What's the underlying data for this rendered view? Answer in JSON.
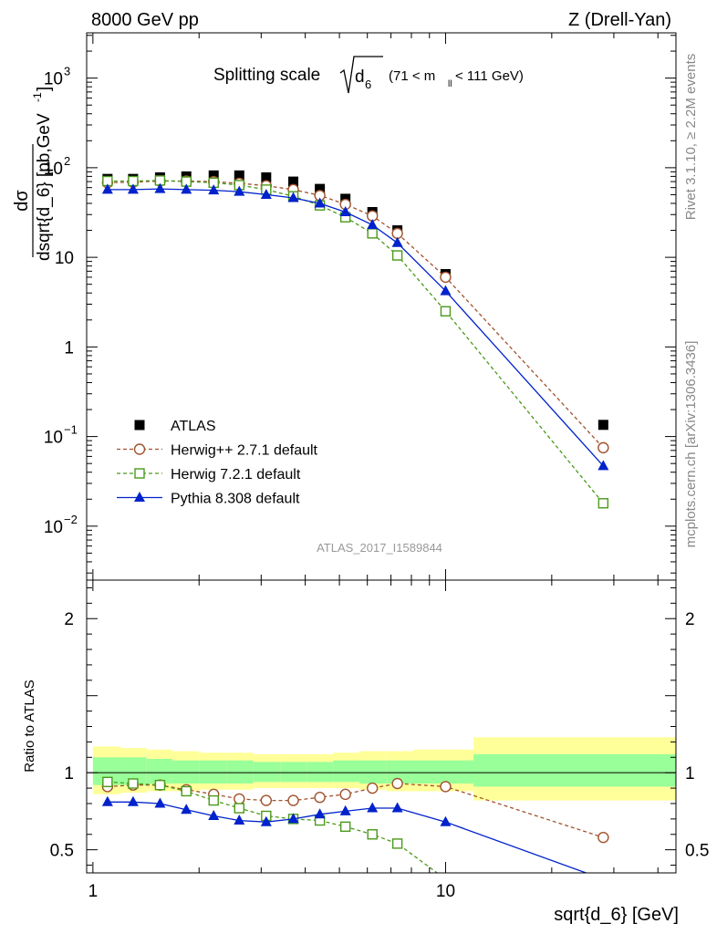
{
  "header": {
    "left": "8000 GeV pp",
    "right": "Z (Drell-Yan)"
  },
  "side_labels": {
    "rivet": "Rivet 3.1.10, ≥ 2.2M events",
    "mcplots": "mcplots.cern.ch [arXiv:1306.3436]"
  },
  "chart_data": [
    {
      "type": "scatter",
      "panel": "main",
      "title": "Splitting scale √d6 (71 < m_ll < 111 GeV)",
      "title_parts": {
        "main": "Splitting scale",
        "var": "d",
        "var_sub": "6",
        "cut_pre": "(71 < m",
        "cut_sub": "ll",
        "cut_post": " < 111 GeV)"
      },
      "ylabel": "dσ/dsqrt{d_6} [pb,GeV⁻¹]",
      "ylabel_parts": {
        "num": "dσ",
        "den": "dsqrt{d_6} [pb,GeV",
        "sup": "-1",
        "close": "]"
      },
      "xscale": "log",
      "yscale": "log",
      "xlim": [
        0.96,
        45
      ],
      "ylim": [
        0.0025,
        3200
      ],
      "yticks": [
        {
          "v": 0.01,
          "label": "10",
          "sup": "−2"
        },
        {
          "v": 0.1,
          "label": "10",
          "sup": "−1"
        },
        {
          "v": 1,
          "label": "1",
          "sup": ""
        },
        {
          "v": 10,
          "label": "10",
          "sup": ""
        },
        {
          "v": 100,
          "label": "10",
          "sup": "2"
        },
        {
          "v": 1000,
          "label": "10",
          "sup": "3"
        }
      ],
      "legend_position": "lower-left",
      "watermark": "ATLAS_2017_I1589844",
      "series": [
        {
          "name": "ATLAS",
          "style": "square",
          "color": "#000000",
          "x": [
            1.1,
            1.3,
            1.55,
            1.84,
            2.2,
            2.6,
            3.1,
            3.7,
            4.4,
            5.2,
            6.2,
            7.3,
            10.0,
            28.0
          ],
          "y": [
            75,
            75,
            78,
            80,
            82,
            82,
            78,
            70,
            58,
            45,
            32,
            20,
            6.5,
            0.135
          ]
        },
        {
          "name": "Herwig++ 2.7.1 default",
          "style": "circle",
          "color": "#a0522d",
          "dashed": true,
          "x": [
            1.1,
            1.3,
            1.55,
            1.84,
            2.2,
            2.6,
            3.1,
            3.7,
            4.4,
            5.2,
            6.2,
            7.3,
            10.0,
            28.0
          ],
          "y": [
            68,
            69,
            71,
            71,
            70,
            67,
            63,
            57,
            49,
            39,
            29,
            18.5,
            6.0,
            0.075
          ]
        },
        {
          "name": "Herwig 7.2.1 default",
          "style": "opensquare",
          "color": "#4a9a1a",
          "dashed": true,
          "x": [
            1.1,
            1.3,
            1.55,
            1.84,
            2.2,
            2.6,
            3.1,
            3.7,
            4.4,
            5.2,
            6.2,
            7.3,
            10.0,
            28.0
          ],
          "y": [
            71,
            71,
            72,
            70,
            68,
            64,
            57,
            48,
            38,
            28,
            18.5,
            10.5,
            2.5,
            0.018
          ]
        },
        {
          "name": "Pythia 8.308 default",
          "style": "triangle",
          "color": "#0022cc",
          "dashed": false,
          "x": [
            1.1,
            1.3,
            1.55,
            1.84,
            2.2,
            2.6,
            3.1,
            3.7,
            4.4,
            5.2,
            6.2,
            7.3,
            10.0,
            28.0
          ],
          "y": [
            57,
            57,
            58,
            57,
            56,
            54,
            50,
            46,
            40,
            32,
            23,
            14.5,
            4.2,
            0.047
          ]
        }
      ]
    },
    {
      "type": "line",
      "panel": "ratio",
      "ylabel": "Ratio to ATLAS",
      "xlabel": "sqrt{d_6} [GeV]",
      "xscale": "log",
      "xlim": [
        0.96,
        45
      ],
      "ylim": [
        0.35,
        2.25
      ],
      "xticks": [
        {
          "v": 1,
          "label": "1"
        },
        {
          "v": 10,
          "label": "10"
        }
      ],
      "yticks": [
        {
          "v": 0.5,
          "label": "0.5"
        },
        {
          "v": 1,
          "label": "1"
        },
        {
          "v": 2,
          "label": "2"
        }
      ],
      "uncertainty_bands": {
        "colors": {
          "outer": "#ffff99",
          "inner": "#99ff99"
        },
        "bins": [
          1.0,
          1.2,
          1.42,
          1.68,
          2.0,
          2.4,
          2.85,
          3.4,
          4.05,
          4.8,
          5.7,
          6.8,
          8.1,
          12.0,
          45.0
        ],
        "outer": [
          [
            0.86,
            1.17
          ],
          [
            0.87,
            1.16
          ],
          [
            0.88,
            1.15
          ],
          [
            0.88,
            1.14
          ],
          [
            0.89,
            1.13
          ],
          [
            0.89,
            1.13
          ],
          [
            0.9,
            1.12
          ],
          [
            0.9,
            1.12
          ],
          [
            0.9,
            1.12
          ],
          [
            0.9,
            1.13
          ],
          [
            0.89,
            1.14
          ],
          [
            0.88,
            1.14
          ],
          [
            0.88,
            1.15
          ],
          [
            0.82,
            1.23
          ]
        ],
        "inner": [
          [
            0.92,
            1.1
          ],
          [
            0.92,
            1.1
          ],
          [
            0.93,
            1.09
          ],
          [
            0.93,
            1.08
          ],
          [
            0.93,
            1.08
          ],
          [
            0.93,
            1.08
          ],
          [
            0.94,
            1.07
          ],
          [
            0.94,
            1.07
          ],
          [
            0.94,
            1.07
          ],
          [
            0.94,
            1.08
          ],
          [
            0.93,
            1.08
          ],
          [
            0.93,
            1.08
          ],
          [
            0.93,
            1.08
          ],
          [
            0.91,
            1.12
          ]
        ]
      },
      "series": [
        {
          "name": "Herwig++ 2.7.1 default",
          "style": "circle",
          "color": "#a0522d",
          "dashed": true,
          "x": [
            1.1,
            1.3,
            1.55,
            1.84,
            2.2,
            2.6,
            3.1,
            3.7,
            4.4,
            5.2,
            6.2,
            7.3,
            10.0,
            28.0
          ],
          "y": [
            0.91,
            0.92,
            0.92,
            0.89,
            0.86,
            0.83,
            0.82,
            0.82,
            0.84,
            0.86,
            0.9,
            0.93,
            0.91,
            0.58
          ]
        },
        {
          "name": "Herwig 7.2.1 default",
          "style": "opensquare",
          "color": "#4a9a1a",
          "dashed": true,
          "x": [
            1.1,
            1.3,
            1.55,
            1.84,
            2.2,
            2.6,
            3.1,
            3.7,
            4.4,
            5.2,
            6.2,
            7.3,
            10.0
          ],
          "y": [
            0.94,
            0.93,
            0.92,
            0.88,
            0.82,
            0.77,
            0.72,
            0.7,
            0.69,
            0.65,
            0.6,
            0.54,
            0.31
          ]
        },
        {
          "name": "Pythia 8.308 default",
          "style": "triangle",
          "color": "#0022cc",
          "dashed": false,
          "x": [
            1.1,
            1.3,
            1.55,
            1.84,
            2.2,
            2.6,
            3.1,
            3.7,
            4.4,
            5.2,
            6.2,
            7.3,
            10.0,
            28.0
          ],
          "y": [
            0.81,
            0.81,
            0.8,
            0.76,
            0.72,
            0.69,
            0.68,
            0.7,
            0.73,
            0.75,
            0.77,
            0.77,
            0.68,
            0.31
          ]
        }
      ]
    }
  ]
}
